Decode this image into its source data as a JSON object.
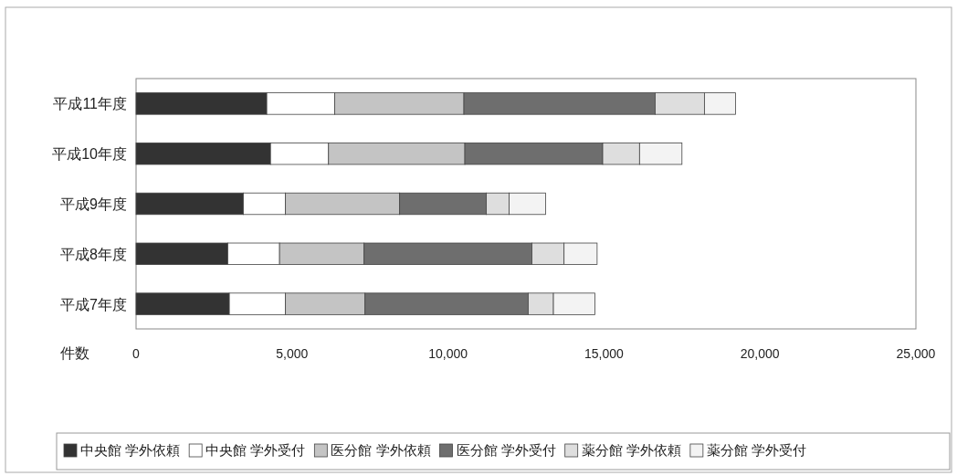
{
  "chart_data": {
    "type": "bar",
    "orientation": "horizontal",
    "stacked": true,
    "grid": false,
    "legend": "bottom",
    "xlabel": "件数",
    "categories": [
      "平成11年度",
      "平成10年度",
      "平成9年度",
      "平成8年度",
      "平成7年度"
    ],
    "xlim": [
      0,
      25000
    ],
    "xticks": [
      0,
      {
        "value": 5000,
        "label": "5,000"
      },
      {
        "value": 10000,
        "label": "10,000"
      },
      {
        "value": 15000,
        "label": "15,000"
      },
      {
        "value": 20000,
        "label": "20,000"
      },
      {
        "value": 25000,
        "label": "25,000"
      }
    ],
    "series": [
      {
        "name": "中央館 学外依頼",
        "color": "#333333",
        "values": [
          4190,
          4310,
          3440,
          2940,
          2990
        ]
      },
      {
        "name": "中央館 学外受付",
        "color": "#ffffff",
        "values": [
          2180,
          1860,
          1350,
          1660,
          1800
        ]
      },
      {
        "name": "医分館 学外依頼",
        "color": "#c4c4c4",
        "values": [
          4140,
          4370,
          3660,
          2710,
          2550
        ]
      },
      {
        "name": "医分館 学外受付",
        "color": "#6e6e6e",
        "values": [
          6130,
          4420,
          2780,
          5380,
          5230
        ]
      },
      {
        "name": "薬分館 学外依頼",
        "color": "#dedede",
        "values": [
          1580,
          1180,
          730,
          1030,
          810
        ]
      },
      {
        "name": "薬分館 学外受付",
        "color": "#f3f3f3",
        "values": [
          1000,
          1360,
          1170,
          1060,
          1330
        ]
      }
    ]
  }
}
